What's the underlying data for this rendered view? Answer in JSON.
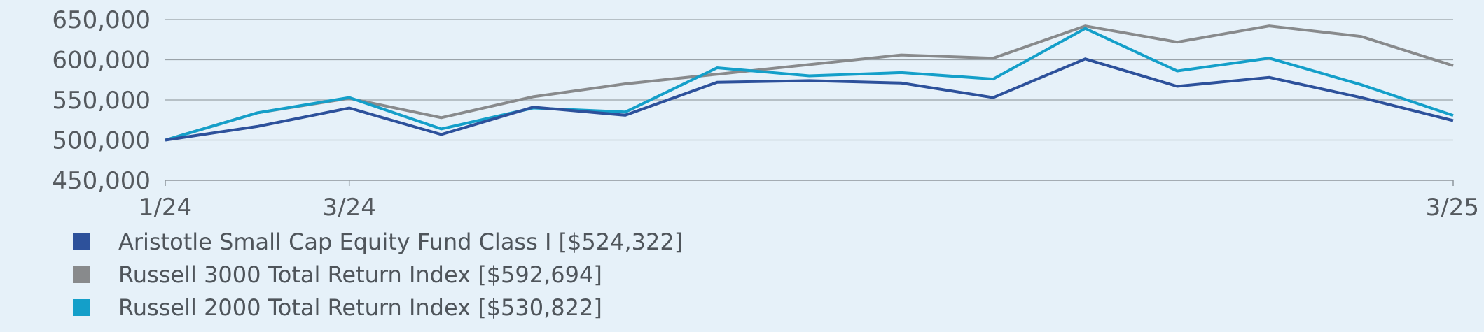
{
  "chart_data": {
    "type": "line",
    "x": [
      "1/24",
      "2/24",
      "3/24",
      "4/24",
      "5/24",
      "6/24",
      "7/24",
      "8/24",
      "9/24",
      "10/24",
      "11/24",
      "12/24",
      "1/25",
      "2/25",
      "3/25"
    ],
    "x_tick_labels": [
      "1/24",
      "3/24",
      "3/25"
    ],
    "ylim": [
      450000,
      650000
    ],
    "y_ticks": [
      450000,
      500000,
      550000,
      600000,
      650000
    ],
    "y_tick_labels": [
      "450,000",
      "500,000",
      "550,000",
      "600,000",
      "650,000"
    ],
    "grid": "horizontal",
    "legend_position": "bottom-left",
    "series": [
      {
        "name": "Aristotle Small Cap Equity Fund Class I [$524,322]",
        "color": "#2d519b",
        "values": [
          500000,
          517000,
          540000,
          507000,
          541000,
          531000,
          572000,
          574000,
          571000,
          553000,
          601000,
          567000,
          578000,
          553000,
          524322
        ]
      },
      {
        "name": "Russell 3000 Total Return Index [$592,694]",
        "color": "#888a8c",
        "values": [
          500000,
          534000,
          552000,
          528000,
          554000,
          570000,
          582000,
          594000,
          606000,
          602000,
          642000,
          622000,
          642000,
          629000,
          592694
        ]
      },
      {
        "name": "Russell 2000 Total Return Index [$530,822]",
        "color": "#149fc9",
        "values": [
          500000,
          534000,
          553000,
          514000,
          540000,
          535000,
          590000,
          580000,
          584000,
          576000,
          639000,
          586000,
          602000,
          569000,
          530822
        ]
      }
    ]
  }
}
